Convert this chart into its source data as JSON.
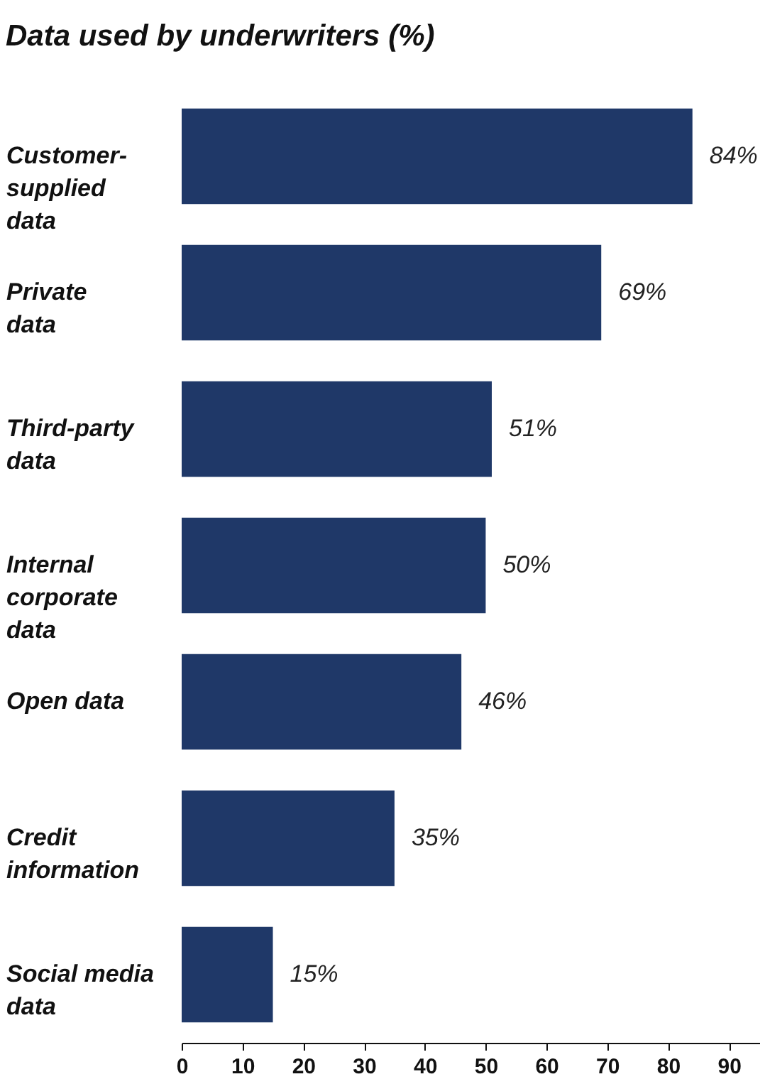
{
  "chart_data": {
    "type": "bar",
    "orientation": "horizontal",
    "title": "Data used by underwriters (%)",
    "categories": [
      "Customer-\nsupplied\ndata",
      "Private\ndata",
      "Third-party\ndata",
      "Internal\ncorporate\ndata",
      "Open data",
      "Credit\ninformation",
      "Social media\ndata"
    ],
    "values": [
      84,
      69,
      51,
      50,
      46,
      35,
      15
    ],
    "value_labels": [
      "84%",
      "69%",
      "51%",
      "50%",
      "46%",
      "35%",
      "15%"
    ],
    "color": "#1f3868",
    "xlim": [
      0,
      95
    ],
    "xticks": [
      0,
      10,
      20,
      30,
      40,
      50,
      60,
      70,
      80,
      90
    ],
    "grid": false
  }
}
